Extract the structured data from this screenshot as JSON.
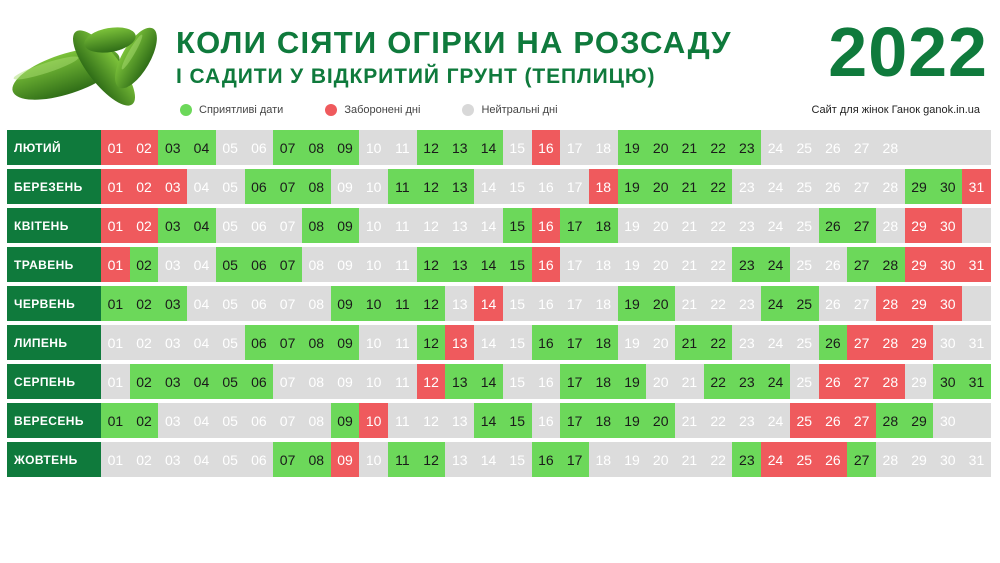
{
  "title": "КОЛИ СІЯТИ ОГІРКИ НА РОЗСАДУ",
  "subtitle": "І САДИТИ У ВІДКРИТИЙ ГРУНТ (ТЕПЛИЦЮ)",
  "year": "2022",
  "site": "Сайт для жінок Ганок ganok.in.ua",
  "colors": {
    "good": "#6cd85a",
    "bad": "#ef5a5d",
    "neutral": "#dcdcdc",
    "brand": "#0f7a3c"
  },
  "legend": [
    {
      "label": "Сприятливі дати",
      "status": "good"
    },
    {
      "label": "Заборонені дні",
      "status": "bad"
    },
    {
      "label": "Нейтральні дні",
      "status": "neutral"
    }
  ],
  "months": [
    {
      "name": "ЛЮТИЙ",
      "days": 28,
      "good": [
        3,
        4,
        7,
        8,
        9,
        12,
        13,
        14,
        19,
        20,
        21,
        22,
        23
      ],
      "bad": [
        1,
        2,
        16
      ]
    },
    {
      "name": "БЕРЕЗЕНЬ",
      "days": 31,
      "good": [
        6,
        7,
        8,
        11,
        12,
        13,
        19,
        20,
        21,
        22,
        29,
        30
      ],
      "bad": [
        1,
        2,
        3,
        18,
        31
      ]
    },
    {
      "name": "КВІТЕНЬ",
      "days": 30,
      "good": [
        3,
        4,
        8,
        9,
        15,
        17,
        18,
        26,
        27
      ],
      "bad": [
        1,
        2,
        16,
        29,
        30
      ]
    },
    {
      "name": "ТРАВЕНЬ",
      "days": 31,
      "good": [
        2,
        5,
        6,
        7,
        12,
        13,
        14,
        15,
        23,
        24,
        27,
        28
      ],
      "bad": [
        1,
        16,
        29,
        30,
        31
      ]
    },
    {
      "name": "ЧЕРВЕНЬ",
      "days": 30,
      "good": [
        1,
        2,
        3,
        9,
        10,
        11,
        12,
        19,
        20,
        24,
        25
      ],
      "bad": [
        14,
        28,
        29,
        30
      ]
    },
    {
      "name": "ЛИПЕНЬ",
      "days": 31,
      "good": [
        6,
        7,
        8,
        9,
        12,
        16,
        17,
        18,
        21,
        22,
        26
      ],
      "bad": [
        13,
        27,
        28,
        29
      ]
    },
    {
      "name": "СЕРПЕНЬ",
      "days": 31,
      "good": [
        2,
        3,
        4,
        5,
        6,
        13,
        14,
        17,
        18,
        19,
        22,
        23,
        24,
        30,
        31
      ],
      "bad": [
        12,
        26,
        27,
        28
      ]
    },
    {
      "name": "ВЕРЕСЕНЬ",
      "days": 30,
      "good": [
        1,
        2,
        9,
        14,
        15,
        17,
        18,
        19,
        20,
        28,
        29
      ],
      "bad": [
        10,
        25,
        26,
        27
      ]
    },
    {
      "name": "ЖОВТЕНЬ",
      "days": 31,
      "good": [
        7,
        8,
        11,
        12,
        16,
        17,
        23,
        27
      ],
      "bad": [
        9,
        24,
        25,
        26
      ]
    }
  ]
}
